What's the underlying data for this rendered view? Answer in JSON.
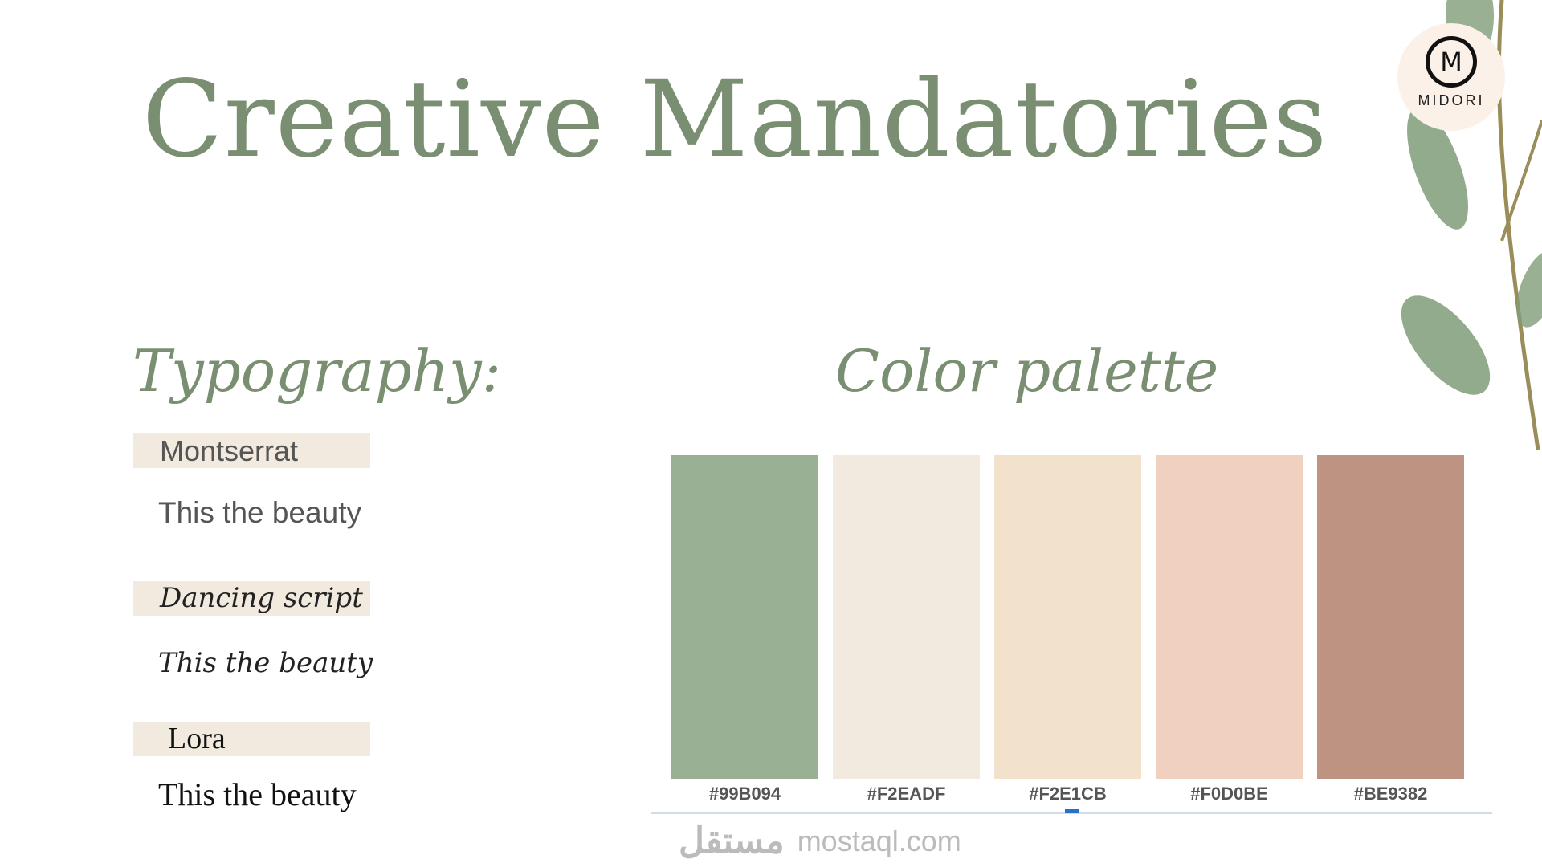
{
  "title": "Creative Mandatories",
  "logo": {
    "text": "MIDORI",
    "letter": "M"
  },
  "typography": {
    "heading": "Typography:",
    "fonts": [
      {
        "name": "Montserrat",
        "sample": "This the beauty"
      },
      {
        "name": "Dancing script",
        "sample": "This the beauty"
      },
      {
        "name": "Lora",
        "sample": "This the beauty"
      }
    ]
  },
  "palette": {
    "heading": "Color palette",
    "colors": [
      {
        "hex": "#99B094",
        "label": "#99B094"
      },
      {
        "hex": "#F2EADF",
        "label": "#F2EADF"
      },
      {
        "hex": "#F2E1CB",
        "label": "#F2E1CB"
      },
      {
        "hex": "#F0D0BE",
        "label": "#F0D0BE"
      },
      {
        "hex": "#BE9382",
        "label": "#BE9382"
      }
    ]
  },
  "watermark": {
    "arabic": "مستقل",
    "latin": "mostaql.com"
  },
  "colors": {
    "title": "#7a8f72",
    "leaf": "#7f9c78",
    "accent_marker": "#2a6fc9"
  }
}
